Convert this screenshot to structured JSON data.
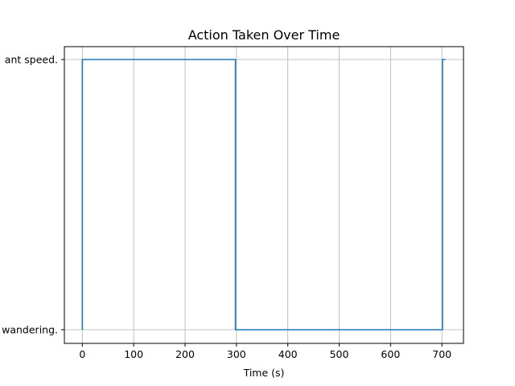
{
  "chart_data": {
    "type": "line",
    "drawstyle": "steps",
    "title": "Action Taken Over Time",
    "xlabel": "Time (s)",
    "ylabel": "",
    "xlim": [
      -35,
      742
    ],
    "x_ticks": [
      0,
      100,
      200,
      300,
      400,
      500,
      600,
      700
    ],
    "y_categories": [
      "wandering.",
      "ant speed."
    ],
    "grid": true,
    "series_color": "#1f77b4",
    "series": [
      {
        "x": [
          0,
          0,
          298,
          298,
          701,
          701,
          707
        ],
        "y": [
          "wandering.",
          "ant speed.",
          "ant speed.",
          "wandering.",
          "wandering.",
          "ant speed.",
          "ant speed."
        ]
      }
    ]
  }
}
